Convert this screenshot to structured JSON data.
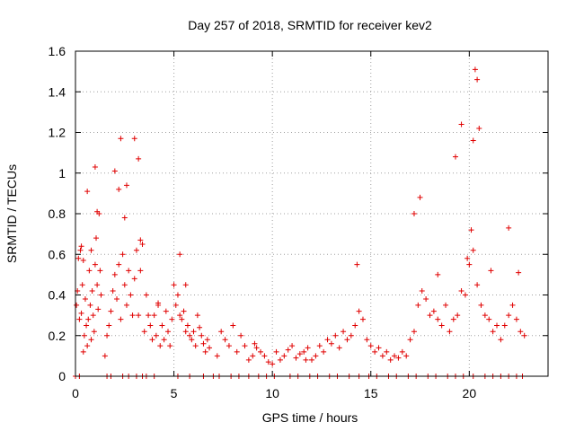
{
  "chart_data": {
    "type": "scatter",
    "title": "Day 257 of 2018, SRMTID for receiver kev2",
    "xlabel": "GPS time / hours",
    "ylabel": "SRMTID / TECUs",
    "xlim": [
      0,
      24
    ],
    "ylim": [
      0,
      1.6
    ],
    "x_ticks": [
      "0",
      "5",
      "10",
      "15",
      "20"
    ],
    "y_ticks": [
      "0",
      "0.2",
      "0.4",
      "0.6",
      "0.8",
      "1",
      "1.2",
      "1.4",
      "1.6"
    ],
    "x_tick_values": [
      0,
      5,
      10,
      15,
      20
    ],
    "y_tick_values": [
      0,
      0.2,
      0.4,
      0.6,
      0.8,
      1.0,
      1.2,
      1.4,
      1.6
    ],
    "grid": true,
    "marker": "+",
    "color": "#e00000",
    "series": [
      {
        "name": "SRMTID",
        "x": [
          0.05,
          0.1,
          0.15,
          0.2,
          0.25,
          0.3,
          0.35,
          0.4,
          0.45,
          0.5,
          0.55,
          0.6,
          0.65,
          0.7,
          0.75,
          0.8,
          0.85,
          0.9,
          0.95,
          1.0,
          1.05,
          1.1,
          1.15,
          1.2,
          1.25,
          1.3,
          1.5,
          1.6,
          1.7,
          1.8,
          1.9,
          2.0,
          2.1,
          2.2,
          2.3,
          2.4,
          2.5,
          2.6,
          2.7,
          2.8,
          2.9,
          3.0,
          3.1,
          3.2,
          3.3,
          3.4,
          3.5,
          3.6,
          3.7,
          3.8,
          3.9,
          4.0,
          4.1,
          4.2,
          4.3,
          4.4,
          4.5,
          4.6,
          4.7,
          4.8,
          4.9,
          5.0,
          5.1,
          5.2,
          5.3,
          5.4,
          5.5,
          5.6,
          5.7,
          5.8,
          5.9,
          6.0,
          6.1,
          6.2,
          6.3,
          6.4,
          6.5,
          6.6,
          6.7,
          6.8,
          7.2,
          7.4,
          7.6,
          7.8,
          8.0,
          8.2,
          8.4,
          8.6,
          8.8,
          9.0,
          9.2,
          9.4,
          9.6,
          9.8,
          10.0,
          10.2,
          10.4,
          10.6,
          10.8,
          11.0,
          11.2,
          11.4,
          11.6,
          11.8,
          12.0,
          12.2,
          12.4,
          12.6,
          12.8,
          13.0,
          13.2,
          13.4,
          13.6,
          13.8,
          14.0,
          14.2,
          14.4,
          14.6,
          14.8,
          15.0,
          15.2,
          15.4,
          15.6,
          15.8,
          16.0,
          16.2,
          16.4,
          16.6,
          16.8,
          17.0,
          17.2,
          17.4,
          17.6,
          17.8,
          18.0,
          18.2,
          18.4,
          18.6,
          18.8,
          19.0,
          19.2,
          19.4,
          19.6,
          19.8,
          20.0,
          20.2,
          20.4,
          20.6,
          20.8,
          21.0,
          21.2,
          21.4,
          21.6,
          21.8,
          22.0,
          22.2,
          22.4,
          22.6,
          22.8,
          0.3,
          0.8,
          1.0,
          2.0,
          2.3,
          3.0,
          3.2,
          0.6,
          2.6,
          19.6,
          20.2,
          20.3,
          20.4,
          20.5,
          19.3,
          20.1,
          22.0,
          22.5,
          2.5,
          3.3,
          0.4,
          1.1,
          2.2,
          4.2,
          5.3,
          14.3,
          17.2,
          17.5,
          18.4,
          19.9,
          21.1,
          5.6,
          9.1,
          11.7,
          0.0,
          0.2,
          1.6,
          1.8,
          2.4,
          2.7,
          3.1,
          3.4,
          3.6,
          4.0,
          5.2,
          5.8,
          6.5,
          7.0,
          7.3,
          7.9,
          8.3,
          8.8,
          9.3,
          9.7,
          10.1,
          10.9,
          11.3,
          11.9,
          12.3,
          12.9,
          13.3,
          13.9,
          14.4,
          14.9,
          15.3,
          15.9,
          16.3,
          16.9,
          17.3,
          17.9,
          18.3,
          18.9,
          19.3,
          19.7,
          20.2,
          20.8,
          21.2,
          21.6,
          22.0,
          22.4,
          22.7
        ],
        "y": [
          0.35,
          0.42,
          0.58,
          0.28,
          0.62,
          0.31,
          0.45,
          0.12,
          0.2,
          0.38,
          0.25,
          0.15,
          0.28,
          0.52,
          0.35,
          0.18,
          0.42,
          0.3,
          0.22,
          0.55,
          0.68,
          0.45,
          0.33,
          0.8,
          0.52,
          0.4,
          0.1,
          0.2,
          0.25,
          0.32,
          0.42,
          0.5,
          0.38,
          0.55,
          0.28,
          0.6,
          0.45,
          0.35,
          0.52,
          0.4,
          0.3,
          0.48,
          0.62,
          0.3,
          0.52,
          0.65,
          0.22,
          0.4,
          0.3,
          0.25,
          0.18,
          0.3,
          0.2,
          0.35,
          0.15,
          0.25,
          0.18,
          0.32,
          0.22,
          0.15,
          0.28,
          0.45,
          0.35,
          0.4,
          0.3,
          0.28,
          0.32,
          0.22,
          0.25,
          0.2,
          0.18,
          0.22,
          0.15,
          0.3,
          0.24,
          0.2,
          0.16,
          0.12,
          0.18,
          0.14,
          0.1,
          0.22,
          0.18,
          0.15,
          0.25,
          0.12,
          0.2,
          0.15,
          0.08,
          0.1,
          0.14,
          0.12,
          0.1,
          0.07,
          0.06,
          0.12,
          0.08,
          0.1,
          0.13,
          0.15,
          0.09,
          0.11,
          0.12,
          0.14,
          0.08,
          0.1,
          0.15,
          0.12,
          0.18,
          0.16,
          0.2,
          0.14,
          0.22,
          0.18,
          0.2,
          0.25,
          0.32,
          0.28,
          0.18,
          0.15,
          0.12,
          0.14,
          0.1,
          0.12,
          0.08,
          0.1,
          0.09,
          0.12,
          0.1,
          0.18,
          0.22,
          0.35,
          0.42,
          0.38,
          0.3,
          0.32,
          0.28,
          0.25,
          0.35,
          0.22,
          0.28,
          0.3,
          0.42,
          0.4,
          0.55,
          0.62,
          0.45,
          0.35,
          0.3,
          0.28,
          0.22,
          0.25,
          0.18,
          0.25,
          0.3,
          0.35,
          0.28,
          0.22,
          0.2,
          0.64,
          0.62,
          1.03,
          1.01,
          1.17,
          1.17,
          1.07,
          0.91,
          0.94,
          1.24,
          1.16,
          1.51,
          1.46,
          1.22,
          1.08,
          0.72,
          0.73,
          0.51,
          0.78,
          0.67,
          0.57,
          0.81,
          0.92,
          0.36,
          0.6,
          0.55,
          0.8,
          0.88,
          0.5,
          0.58,
          0.52,
          0.45,
          0.16,
          0.08,
          0.0,
          0.0,
          0.0,
          0.0,
          0.0,
          0.0,
          0.0,
          0.0,
          0.0,
          0.0,
          0.0,
          0.0,
          0.0,
          0.0,
          0.0,
          0.0,
          0.0,
          0.0,
          0.0,
          0.0,
          0.0,
          0.0,
          0.0,
          0.0,
          0.0,
          0.0,
          0.0,
          0.0,
          0.0,
          0.0,
          0.0,
          0.0,
          0.0,
          0.0,
          0.0,
          0.0,
          0.0,
          0.0,
          0.0,
          0.0,
          0.0,
          0.0,
          0.0,
          0.0,
          0.0,
          0.0,
          0.0
        ]
      }
    ]
  }
}
